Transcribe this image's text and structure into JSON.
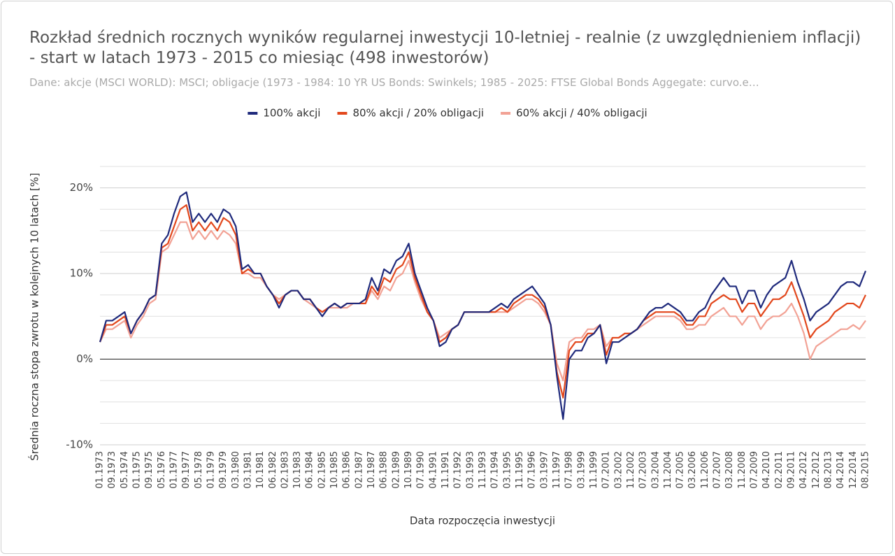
{
  "chart_data": {
    "type": "line",
    "title": "Rozkład średnich rocznych wyników regularnej inwestycji 10-letniej - realnie (z uwzględnieniem inflacji) - start w latach 1973 - 2015 co miesiąc (498 inwestorów)",
    "subtitle": "Dane: akcje (MSCI WORLD): MSCI; obligacje (1973 - 1984: 10 YR US Bonds: Swinkels; 1985 - 2025: FTSE Global Bonds Aggegate: curvo.e…",
    "x_label": "Data rozpoczęcia inwestycji",
    "y_label": "Średnia roczna stopa zwrotu w kolejnych 10 latach [%]",
    "categories": [
      "01.1973",
      null,
      "09.1973",
      null,
      "05.1974",
      null,
      "01.1975",
      null,
      "09.1975",
      null,
      "05.1976",
      null,
      "01.1977",
      null,
      "09.1977",
      null,
      "05.1978",
      null,
      "01.1979",
      null,
      "09.1979",
      null,
      "03.1980",
      null,
      "03.1981",
      null,
      "10.1981",
      null,
      "06.1982",
      null,
      "02.1983",
      null,
      "10.1983",
      null,
      "06.1984",
      null,
      "02.1985",
      null,
      "10.1985",
      null,
      "06.1986",
      null,
      "02.1987",
      null,
      "10.1987",
      null,
      "06.1988",
      null,
      "02.1989",
      null,
      "10.1989",
      null,
      "07.1990",
      null,
      "04.1991",
      null,
      "11.1991",
      null,
      "07.1992",
      null,
      "03.1993",
      null,
      "11.1993",
      null,
      "07.1994",
      null,
      "03.1995",
      null,
      "11.1995",
      null,
      "07.1996",
      null,
      "03.1997",
      null,
      "11.1997",
      null,
      "07.1998",
      null,
      "03.1999",
      null,
      "11.1999",
      null,
      "07.2001",
      null,
      "03.2002",
      null,
      "11.2002",
      null,
      "07.2003",
      null,
      "03.2004",
      null,
      "11.2004",
      null,
      "07.2005",
      null,
      "03.2006",
      null,
      "11.2006",
      null,
      "07.2007",
      null,
      "03.2008",
      null,
      "11.2008",
      null,
      "07.2009",
      null,
      "04.2010",
      null,
      "02.2011",
      null,
      "09.2011",
      null,
      "04.2012",
      null,
      "12.2012",
      null,
      "08.2013",
      null,
      "04.2014",
      null,
      "12.2014",
      null,
      "08.2015"
    ],
    "series": [
      {
        "name": "100% akcji",
        "color": "#1f2a7c",
        "values": [
          2,
          4.5,
          4.5,
          5,
          5.5,
          3,
          4.5,
          5.5,
          7,
          7.5,
          13.5,
          14.5,
          17,
          19,
          19.5,
          16,
          17,
          16,
          17,
          16,
          17.5,
          17,
          15.5,
          10.5,
          11,
          10,
          10,
          8.5,
          7.5,
          6,
          7.5,
          8,
          8,
          7,
          7,
          6,
          5,
          6,
          6.5,
          6,
          6.5,
          6.5,
          6.5,
          7,
          9.5,
          8,
          10.5,
          10,
          11.5,
          12,
          13.5,
          10,
          8,
          6,
          4.5,
          1.5,
          2,
          3.5,
          4,
          5.5,
          5.5,
          5.5,
          5.5,
          5.5,
          6,
          6.5,
          6,
          7,
          7.5,
          8,
          8.5,
          7.5,
          6.5,
          4,
          -2,
          -7,
          0,
          1,
          1,
          2.5,
          3,
          4,
          -0.5,
          2,
          2,
          2.5,
          3,
          3.5,
          4.5,
          5.5,
          6,
          6,
          6.5,
          6,
          5.5,
          4.5,
          4.5,
          5.5,
          6,
          7.5,
          8.5,
          9.5,
          8.5,
          8.5,
          6.5,
          8,
          8,
          6,
          7.5,
          8.5,
          9,
          9.5,
          11.5,
          9,
          7,
          4.5,
          5.5,
          6,
          6.5,
          7.5,
          8.5,
          9,
          9,
          8.5,
          10.3
        ]
      },
      {
        "name": "80% akcji / 20% obligacji",
        "color": "#e2471c",
        "values": [
          2,
          4,
          4,
          4.5,
          5,
          3,
          4.5,
          5.5,
          7,
          7.5,
          13,
          13.5,
          15.5,
          17.5,
          18,
          15,
          16,
          15,
          16,
          15,
          16.5,
          16,
          14.5,
          10,
          10.5,
          10,
          10,
          8.5,
          7.5,
          6.5,
          7.5,
          8,
          8,
          7,
          7,
          6,
          5.5,
          6,
          6.5,
          6,
          6.5,
          6.5,
          6.5,
          6.5,
          8.5,
          7.5,
          9.5,
          9,
          10.5,
          11,
          12.5,
          9.5,
          7.5,
          5.5,
          4.5,
          2,
          2.5,
          3.5,
          4,
          5.5,
          5.5,
          5.5,
          5.5,
          5.5,
          5.5,
          6,
          5.5,
          6.5,
          7,
          7.5,
          7.5,
          7,
          6,
          4,
          -1.5,
          -4.5,
          1,
          2,
          2,
          3,
          3,
          4,
          0.5,
          2.5,
          2.5,
          3,
          3,
          3.5,
          4.5,
          5,
          5.5,
          5.5,
          5.5,
          5.5,
          5,
          4,
          4,
          5,
          5,
          6.5,
          7,
          7.5,
          7,
          7,
          5.5,
          6.5,
          6.5,
          5,
          6,
          7,
          7,
          7.5,
          9,
          7,
          5,
          2.5,
          3.5,
          4,
          4.5,
          5.5,
          6,
          6.5,
          6.5,
          6,
          7.5
        ]
      },
      {
        "name": "60% akcji / 40% obligacji",
        "color": "#f2a295",
        "values": [
          2,
          3.5,
          3.5,
          4,
          4.5,
          2.5,
          4,
          5,
          6.5,
          7,
          12.5,
          13,
          14.5,
          16,
          16,
          14,
          15,
          14,
          15,
          14,
          15,
          14.5,
          13.5,
          10,
          10,
          9.5,
          9.5,
          8.5,
          7.5,
          7,
          7.5,
          8,
          8,
          7,
          6.5,
          6,
          5.5,
          6,
          6,
          6,
          6,
          6.5,
          6.5,
          6.5,
          8,
          7,
          8.5,
          8,
          9.5,
          10,
          11.5,
          9,
          7,
          5.5,
          4.5,
          2.5,
          3,
          3.5,
          4,
          5.5,
          5.5,
          5.5,
          5.5,
          5.5,
          5.5,
          5.5,
          5.5,
          6,
          6.5,
          7,
          7,
          6.5,
          5.5,
          4,
          -0.5,
          -2.5,
          2,
          2.5,
          2.5,
          3.5,
          3.5,
          4,
          1.5,
          2.5,
          2.5,
          3,
          3,
          3.5,
          4,
          4.5,
          5,
          5,
          5,
          5,
          4.5,
          3.5,
          3.5,
          4,
          4,
          5,
          5.5,
          6,
          5,
          5,
          4,
          5,
          5,
          3.5,
          4.5,
          5,
          5,
          5.5,
          6.5,
          5,
          3,
          0,
          1.5,
          2,
          2.5,
          3,
          3.5,
          3.5,
          4,
          3.5,
          4.5
        ]
      }
    ],
    "ylim": [
      -10,
      22.5
    ],
    "yticks": [
      {
        "value": -10,
        "label": "-10%"
      },
      {
        "value": 0,
        "label": "0%"
      },
      {
        "value": 10,
        "label": "10%"
      },
      {
        "value": 20,
        "label": "20%"
      }
    ],
    "minor_yticks": [
      -7.5,
      -5,
      -2.5,
      2.5,
      5,
      7.5,
      12.5,
      15,
      17.5,
      22.5
    ],
    "grid": true,
    "legend": "top"
  }
}
